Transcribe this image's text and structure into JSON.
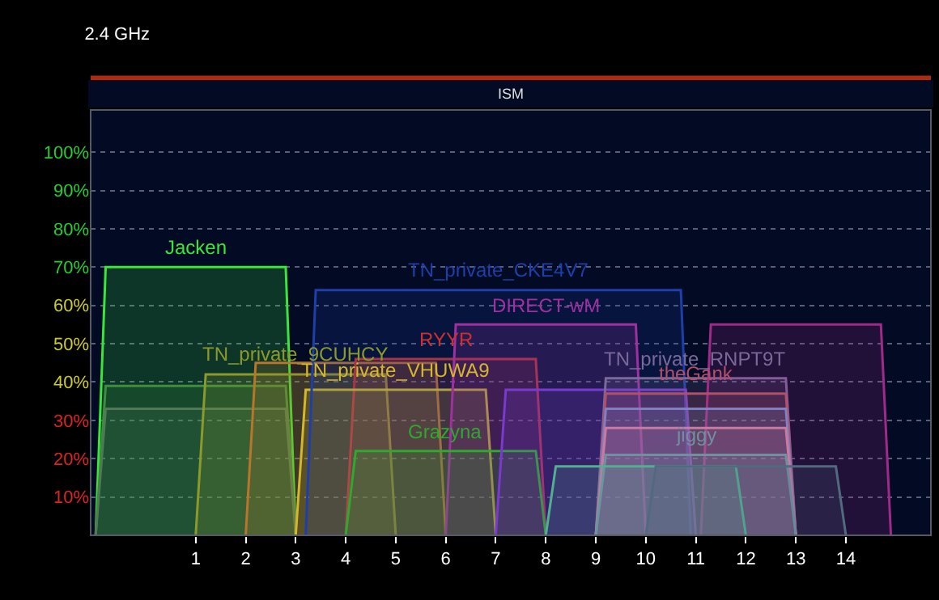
{
  "chart_data": {
    "type": "area",
    "title": "2.4 GHz",
    "annotations": [
      "ISM"
    ],
    "xlim": [
      -1.1,
      15.7
    ],
    "xticks": [
      1,
      2,
      3,
      4,
      5,
      6,
      7,
      8,
      9,
      10,
      11,
      12,
      13,
      14
    ],
    "ylim": [
      0,
      111
    ],
    "yticks": [
      {
        "value": 10,
        "label": "10%"
      },
      {
        "value": 20,
        "label": "20%"
      },
      {
        "value": 30,
        "label": "30%"
      },
      {
        "value": 40,
        "label": "40%"
      },
      {
        "value": 50,
        "label": "50%"
      },
      {
        "value": 60,
        "label": "60%"
      },
      {
        "value": 70,
        "label": "70%"
      },
      {
        "value": 80,
        "label": "80%"
      },
      {
        "value": 90,
        "label": "90%"
      },
      {
        "value": 100,
        "label": "100%"
      }
    ],
    "grid": "y",
    "legend": false,
    "series": [
      {
        "name": "Jacken",
        "color": "#3ae63a",
        "x": [
          -1,
          -0.8,
          2.8,
          3
        ],
        "values": [
          0,
          70,
          70,
          0
        ]
      },
      {
        "color": "#3d8f3d",
        "x": [
          -1,
          -0.8,
          2.8,
          3
        ],
        "values": [
          0,
          39,
          39,
          0
        ]
      },
      {
        "color": "#4f7a55",
        "x": [
          -1,
          -0.8,
          2.8,
          3
        ],
        "values": [
          0,
          33,
          33,
          0
        ]
      },
      {
        "name": "TN_private_9CUHCY",
        "color": "#8c9a2c",
        "x": [
          1,
          1.2,
          4.8,
          5
        ],
        "values": [
          0,
          42,
          42,
          0
        ]
      },
      {
        "color": "#b8762c",
        "x": [
          2,
          2.2,
          5.8,
          6
        ],
        "values": [
          0,
          45,
          45,
          0
        ]
      },
      {
        "name": "RYYR",
        "color": "#cc3030",
        "x": [
          4,
          4.2,
          7.8,
          8
        ],
        "values": [
          0,
          46,
          46,
          0
        ]
      },
      {
        "name": "TN_private_VHUWA9",
        "color": "#d4b82a",
        "x": [
          3,
          3.2,
          6.8,
          7
        ],
        "values": [
          0,
          38,
          38,
          0
        ]
      },
      {
        "name": "TN_private_CKE4V7",
        "color": "#1f3fa8",
        "x": [
          3.2,
          3.4,
          10.7,
          10.9
        ],
        "values": [
          0,
          64,
          64,
          0
        ]
      },
      {
        "name": "DIRECT-wM",
        "color": "#a030a0",
        "x": [
          6,
          6.2,
          9.8,
          10
        ],
        "values": [
          0,
          55,
          55,
          0
        ]
      },
      {
        "name": "Grazyna",
        "color": "#2fa82f",
        "x": [
          4,
          4.2,
          7.8,
          8
        ],
        "values": [
          0,
          22,
          22,
          0
        ]
      },
      {
        "color": "#7a3ad0",
        "x": [
          7,
          7.2,
          10.8,
          11
        ],
        "values": [
          0,
          38,
          38,
          0
        ]
      },
      {
        "name": "TN_private_RNPT9T",
        "color": "#7a6a9a",
        "x": [
          9,
          9.2,
          12.8,
          13
        ],
        "values": [
          0,
          41,
          41,
          0
        ]
      },
      {
        "color": "#a02a8a",
        "x": [
          11.1,
          11.3,
          14.7,
          14.9
        ],
        "values": [
          0,
          55,
          55,
          0
        ]
      },
      {
        "name": "theGank",
        "color": "#b0506a",
        "x": [
          9,
          9.2,
          12.8,
          13
        ],
        "values": [
          0,
          37,
          37,
          0
        ]
      },
      {
        "color": "#8080c0",
        "x": [
          9,
          9.2,
          12.8,
          13
        ],
        "values": [
          0,
          33,
          33,
          0
        ]
      },
      {
        "color": "#c87aa0",
        "x": [
          9,
          9.2,
          12.8,
          13
        ],
        "values": [
          0,
          28,
          28,
          0
        ]
      },
      {
        "name": "jiggy",
        "color": "#7090a0",
        "x": [
          9,
          9.2,
          12.8,
          13
        ],
        "values": [
          0,
          21,
          21,
          0
        ]
      },
      {
        "color": "#50b090",
        "x": [
          8,
          8.2,
          11.8,
          12
        ],
        "values": [
          0,
          18,
          18,
          0
        ]
      },
      {
        "color": "#506a80",
        "x": [
          10,
          10.2,
          13.8,
          14
        ],
        "values": [
          0,
          18,
          18,
          0
        ]
      }
    ]
  }
}
